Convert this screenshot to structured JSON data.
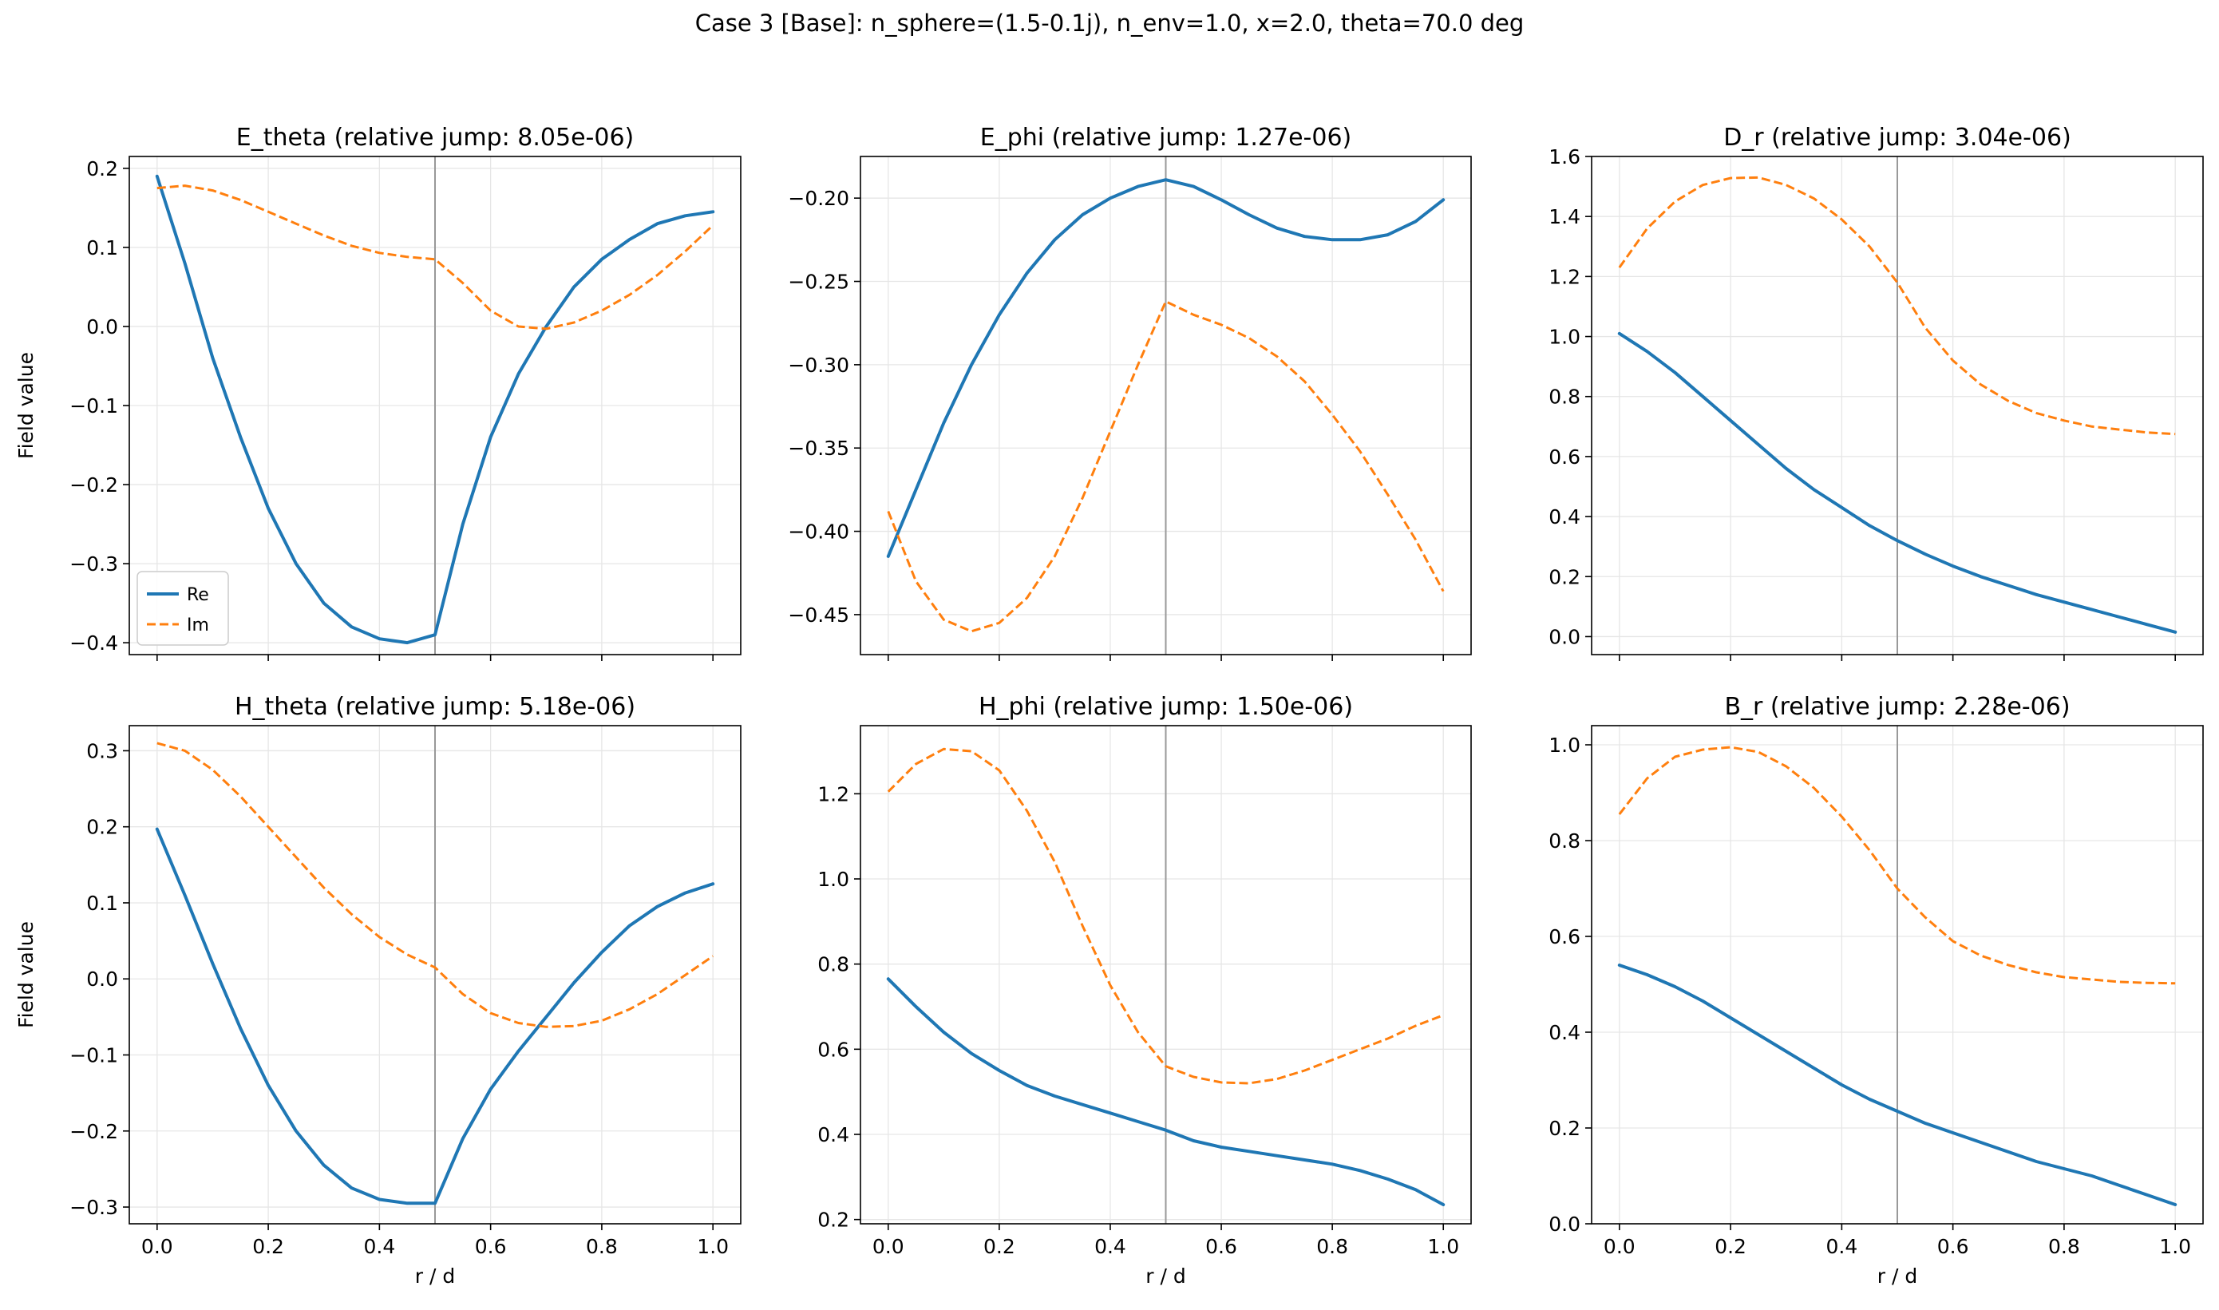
{
  "figure": {
    "suptitle": "Case 3 [Base]: n_sphere=(1.5-0.1j), n_env=1.0, x=2.0, theta=70.0 deg"
  },
  "colors": {
    "re": "#1f77b4",
    "im": "#ff7f0e",
    "interface": "#999999",
    "grid": "#e6e6e6"
  },
  "chart_data": [
    {
      "type": "line",
      "title": "E_theta (relative jump: 8.05e-06)",
      "xlabel": "",
      "ylabel": "Field value",
      "xlim": [
        -0.05,
        1.05
      ],
      "ylim": [
        -0.415,
        0.215
      ],
      "xticks": [
        0.0,
        0.2,
        0.4,
        0.6,
        0.8,
        1.0
      ],
      "yticks": [
        -0.4,
        -0.3,
        -0.2,
        -0.1,
        0.0,
        0.1,
        0.2
      ],
      "yticklabels": [
        "−0.4",
        "−0.3",
        "−0.2",
        "−0.1",
        "0.0",
        "0.1",
        "0.2"
      ],
      "interface_x": 0.5,
      "grid": true,
      "legend": {
        "placement": "lower-left",
        "entries": [
          "Re",
          "Im"
        ]
      },
      "series": [
        {
          "name": "Re",
          "style": "solid",
          "x": [
            0.0,
            0.05,
            0.1,
            0.15,
            0.2,
            0.25,
            0.3,
            0.35,
            0.4,
            0.45,
            0.5,
            0.55,
            0.6,
            0.65,
            0.7,
            0.75,
            0.8,
            0.85,
            0.9,
            0.95,
            1.0
          ],
          "y": [
            0.19,
            0.08,
            -0.04,
            -0.14,
            -0.23,
            -0.3,
            -0.35,
            -0.38,
            -0.395,
            -0.4,
            -0.39,
            -0.25,
            -0.14,
            -0.06,
            0.0,
            0.05,
            0.085,
            0.11,
            0.13,
            0.14,
            0.145
          ]
        },
        {
          "name": "Im",
          "style": "dashed",
          "x": [
            0.0,
            0.05,
            0.1,
            0.15,
            0.2,
            0.25,
            0.3,
            0.35,
            0.4,
            0.45,
            0.5,
            0.55,
            0.6,
            0.65,
            0.7,
            0.75,
            0.8,
            0.85,
            0.9,
            0.95,
            1.0
          ],
          "y": [
            0.175,
            0.178,
            0.172,
            0.16,
            0.145,
            0.13,
            0.115,
            0.102,
            0.093,
            0.088,
            0.085,
            0.055,
            0.02,
            0.0,
            -0.003,
            0.005,
            0.02,
            0.04,
            0.065,
            0.095,
            0.128
          ]
        }
      ]
    },
    {
      "type": "line",
      "title": "E_phi (relative jump: 1.27e-06)",
      "xlabel": "",
      "ylabel": "",
      "xlim": [
        -0.05,
        1.05
      ],
      "ylim": [
        -0.474,
        -0.175
      ],
      "xticks": [
        0.0,
        0.2,
        0.4,
        0.6,
        0.8,
        1.0
      ],
      "yticks": [
        -0.45,
        -0.4,
        -0.35,
        -0.3,
        -0.25,
        -0.2
      ],
      "yticklabels": [
        "−0.45",
        "−0.40",
        "−0.35",
        "−0.30",
        "−0.25",
        "−0.20"
      ],
      "interface_x": 0.5,
      "grid": true,
      "series": [
        {
          "name": "Re",
          "style": "solid",
          "x": [
            0.0,
            0.05,
            0.1,
            0.15,
            0.2,
            0.25,
            0.3,
            0.35,
            0.4,
            0.45,
            0.5,
            0.55,
            0.6,
            0.65,
            0.7,
            0.75,
            0.8,
            0.85,
            0.9,
            0.95,
            1.0
          ],
          "y": [
            -0.415,
            -0.375,
            -0.335,
            -0.3,
            -0.27,
            -0.245,
            -0.225,
            -0.21,
            -0.2,
            -0.193,
            -0.189,
            -0.193,
            -0.201,
            -0.21,
            -0.218,
            -0.223,
            -0.225,
            -0.225,
            -0.222,
            -0.214,
            -0.201
          ]
        },
        {
          "name": "Im",
          "style": "dashed",
          "x": [
            0.0,
            0.05,
            0.1,
            0.15,
            0.2,
            0.25,
            0.3,
            0.35,
            0.4,
            0.45,
            0.5,
            0.55,
            0.6,
            0.65,
            0.7,
            0.75,
            0.8,
            0.85,
            0.9,
            0.95,
            1.0
          ],
          "y": [
            -0.388,
            -0.43,
            -0.453,
            -0.46,
            -0.455,
            -0.44,
            -0.415,
            -0.38,
            -0.34,
            -0.3,
            -0.262,
            -0.27,
            -0.276,
            -0.284,
            -0.295,
            -0.31,
            -0.33,
            -0.352,
            -0.378,
            -0.405,
            -0.436
          ]
        }
      ]
    },
    {
      "type": "line",
      "title": "D_r (relative jump: 3.04e-06)",
      "xlabel": "",
      "ylabel": "",
      "xlim": [
        -0.05,
        1.05
      ],
      "ylim": [
        -0.06,
        1.6
      ],
      "xticks": [
        0.0,
        0.2,
        0.4,
        0.6,
        0.8,
        1.0
      ],
      "yticks": [
        0.0,
        0.2,
        0.4,
        0.6,
        0.8,
        1.0,
        1.2,
        1.4,
        1.6
      ],
      "yticklabels": [
        "0.0",
        "0.2",
        "0.4",
        "0.6",
        "0.8",
        "1.0",
        "1.2",
        "1.4",
        "1.6"
      ],
      "interface_x": 0.5,
      "grid": true,
      "series": [
        {
          "name": "Re",
          "style": "solid",
          "x": [
            0.0,
            0.05,
            0.1,
            0.15,
            0.2,
            0.25,
            0.3,
            0.35,
            0.4,
            0.45,
            0.5,
            0.55,
            0.6,
            0.65,
            0.7,
            0.75,
            0.8,
            0.85,
            0.9,
            0.95,
            1.0
          ],
          "y": [
            1.01,
            0.95,
            0.88,
            0.8,
            0.72,
            0.64,
            0.56,
            0.49,
            0.43,
            0.37,
            0.32,
            0.275,
            0.235,
            0.2,
            0.17,
            0.14,
            0.115,
            0.09,
            0.065,
            0.04,
            0.015
          ]
        },
        {
          "name": "Im",
          "style": "dashed",
          "x": [
            0.0,
            0.05,
            0.1,
            0.15,
            0.2,
            0.25,
            0.3,
            0.35,
            0.4,
            0.45,
            0.5,
            0.55,
            0.6,
            0.65,
            0.7,
            0.75,
            0.8,
            0.85,
            0.9,
            0.95,
            1.0
          ],
          "y": [
            1.23,
            1.36,
            1.45,
            1.505,
            1.528,
            1.53,
            1.505,
            1.46,
            1.39,
            1.3,
            1.18,
            1.03,
            0.92,
            0.84,
            0.785,
            0.745,
            0.72,
            0.7,
            0.69,
            0.68,
            0.675
          ]
        }
      ]
    },
    {
      "type": "line",
      "title": "H_theta (relative jump: 5.18e-06)",
      "xlabel": "r / d",
      "ylabel": "Field value",
      "xlim": [
        -0.05,
        1.05
      ],
      "ylim": [
        -0.322,
        0.333
      ],
      "xticks": [
        0.0,
        0.2,
        0.4,
        0.6,
        0.8,
        1.0
      ],
      "xticklabels": [
        "0.0",
        "0.2",
        "0.4",
        "0.6",
        "0.8",
        "1.0"
      ],
      "yticks": [
        -0.3,
        -0.2,
        -0.1,
        0.0,
        0.1,
        0.2,
        0.3
      ],
      "yticklabels": [
        "−0.3",
        "−0.2",
        "−0.1",
        "0.0",
        "0.1",
        "0.2",
        "0.3"
      ],
      "interface_x": 0.5,
      "grid": true,
      "series": [
        {
          "name": "Re",
          "style": "solid",
          "x": [
            0.0,
            0.05,
            0.1,
            0.15,
            0.2,
            0.25,
            0.3,
            0.35,
            0.4,
            0.45,
            0.5,
            0.55,
            0.6,
            0.65,
            0.7,
            0.75,
            0.8,
            0.85,
            0.9,
            0.95,
            1.0
          ],
          "y": [
            0.197,
            0.11,
            0.02,
            -0.065,
            -0.14,
            -0.2,
            -0.245,
            -0.275,
            -0.29,
            -0.295,
            -0.295,
            -0.21,
            -0.145,
            -0.095,
            -0.05,
            -0.005,
            0.035,
            0.07,
            0.095,
            0.113,
            0.125
          ]
        },
        {
          "name": "Im",
          "style": "dashed",
          "x": [
            0.0,
            0.05,
            0.1,
            0.15,
            0.2,
            0.25,
            0.3,
            0.35,
            0.4,
            0.45,
            0.5,
            0.55,
            0.6,
            0.65,
            0.7,
            0.75,
            0.8,
            0.85,
            0.9,
            0.95,
            1.0
          ],
          "y": [
            0.31,
            0.3,
            0.275,
            0.24,
            0.2,
            0.16,
            0.12,
            0.085,
            0.055,
            0.032,
            0.015,
            -0.02,
            -0.045,
            -0.058,
            -0.063,
            -0.062,
            -0.055,
            -0.04,
            -0.02,
            0.005,
            0.03
          ]
        }
      ]
    },
    {
      "type": "line",
      "title": "H_phi (relative jump: 1.50e-06)",
      "xlabel": "r / d",
      "ylabel": "",
      "xlim": [
        -0.05,
        1.05
      ],
      "ylim": [
        0.19,
        1.36
      ],
      "xticks": [
        0.0,
        0.2,
        0.4,
        0.6,
        0.8,
        1.0
      ],
      "xticklabels": [
        "0.0",
        "0.2",
        "0.4",
        "0.6",
        "0.8",
        "1.0"
      ],
      "yticks": [
        0.2,
        0.4,
        0.6,
        0.8,
        1.0,
        1.2
      ],
      "yticklabels": [
        "0.2",
        "0.4",
        "0.6",
        "0.8",
        "1.0",
        "1.2"
      ],
      "interface_x": 0.5,
      "grid": true,
      "series": [
        {
          "name": "Re",
          "style": "solid",
          "x": [
            0.0,
            0.05,
            0.1,
            0.15,
            0.2,
            0.25,
            0.3,
            0.35,
            0.4,
            0.45,
            0.5,
            0.55,
            0.6,
            0.65,
            0.7,
            0.75,
            0.8,
            0.85,
            0.9,
            0.95,
            1.0
          ],
          "y": [
            0.765,
            0.7,
            0.64,
            0.59,
            0.55,
            0.515,
            0.49,
            0.47,
            0.45,
            0.43,
            0.41,
            0.385,
            0.37,
            0.36,
            0.35,
            0.34,
            0.33,
            0.315,
            0.295,
            0.27,
            0.235
          ]
        },
        {
          "name": "Im",
          "style": "dashed",
          "x": [
            0.0,
            0.05,
            0.1,
            0.15,
            0.2,
            0.25,
            0.3,
            0.35,
            0.4,
            0.45,
            0.5,
            0.55,
            0.6,
            0.65,
            0.7,
            0.75,
            0.8,
            0.85,
            0.9,
            0.95,
            1.0
          ],
          "y": [
            1.205,
            1.27,
            1.305,
            1.3,
            1.255,
            1.16,
            1.04,
            0.89,
            0.75,
            0.64,
            0.56,
            0.535,
            0.522,
            0.52,
            0.53,
            0.55,
            0.575,
            0.6,
            0.625,
            0.655,
            0.68
          ]
        }
      ]
    },
    {
      "type": "line",
      "title": "B_r (relative jump: 2.28e-06)",
      "xlabel": "r / d",
      "ylabel": "",
      "xlim": [
        -0.05,
        1.05
      ],
      "ylim": [
        0.0,
        1.04
      ],
      "xticks": [
        0.0,
        0.2,
        0.4,
        0.6,
        0.8,
        1.0
      ],
      "xticklabels": [
        "0.0",
        "0.2",
        "0.4",
        "0.6",
        "0.8",
        "1.0"
      ],
      "yticks": [
        0.0,
        0.2,
        0.4,
        0.6,
        0.8,
        1.0
      ],
      "yticklabels": [
        "0.0",
        "0.2",
        "0.4",
        "0.6",
        "0.8",
        "1.0"
      ],
      "interface_x": 0.5,
      "grid": true,
      "series": [
        {
          "name": "Re",
          "style": "solid",
          "x": [
            0.0,
            0.05,
            0.1,
            0.15,
            0.2,
            0.25,
            0.3,
            0.35,
            0.4,
            0.45,
            0.5,
            0.55,
            0.6,
            0.65,
            0.7,
            0.75,
            0.8,
            0.85,
            0.9,
            0.95,
            1.0
          ],
          "y": [
            0.54,
            0.52,
            0.495,
            0.465,
            0.43,
            0.395,
            0.36,
            0.325,
            0.29,
            0.26,
            0.235,
            0.21,
            0.19,
            0.17,
            0.15,
            0.13,
            0.115,
            0.1,
            0.08,
            0.06,
            0.04
          ]
        },
        {
          "name": "Im",
          "style": "dashed",
          "x": [
            0.0,
            0.05,
            0.1,
            0.15,
            0.2,
            0.25,
            0.3,
            0.35,
            0.4,
            0.45,
            0.5,
            0.55,
            0.6,
            0.65,
            0.7,
            0.75,
            0.8,
            0.85,
            0.9,
            0.95,
            1.0
          ],
          "y": [
            0.855,
            0.93,
            0.975,
            0.99,
            0.995,
            0.985,
            0.955,
            0.91,
            0.85,
            0.78,
            0.7,
            0.64,
            0.59,
            0.56,
            0.54,
            0.525,
            0.515,
            0.51,
            0.505,
            0.503,
            0.502
          ]
        }
      ]
    }
  ]
}
